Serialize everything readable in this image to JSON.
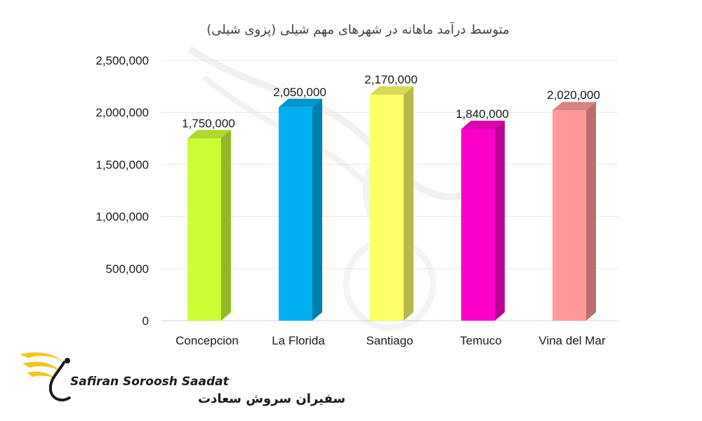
{
  "chart_data": {
    "type": "bar",
    "title": "متوسط درآمد ماهانه در شهرهای مهم شیلی (پزوی شیلی)",
    "categories": [
      "Concepcion",
      "La Florida",
      "Santiago",
      "Temuco",
      "Vina del Mar"
    ],
    "values": [
      1750000,
      2050000,
      2170000,
      1840000,
      2020000
    ],
    "data_labels": [
      "1,750,000",
      "2,050,000",
      "2,170,000",
      "1,840,000",
      "2,020,000"
    ],
    "colors": [
      "#ccff33",
      "#00b0f0",
      "#ffff66",
      "#ff00cc",
      "#ff9999"
    ],
    "yticks": [
      "0",
      "500,000",
      "1,000,000",
      "1,500,000",
      "2,000,000",
      "2,500,000"
    ],
    "ylim": [
      0,
      2500000
    ],
    "xlabel": "",
    "ylabel": "",
    "grid": true,
    "legend": "none"
  },
  "logo": {
    "name_en": "Safiran Soroosh Saadat",
    "name_fa": "سفیران سروش سعادت",
    "accent_color": "#f5c518",
    "icon": "swan-logo-icon"
  }
}
